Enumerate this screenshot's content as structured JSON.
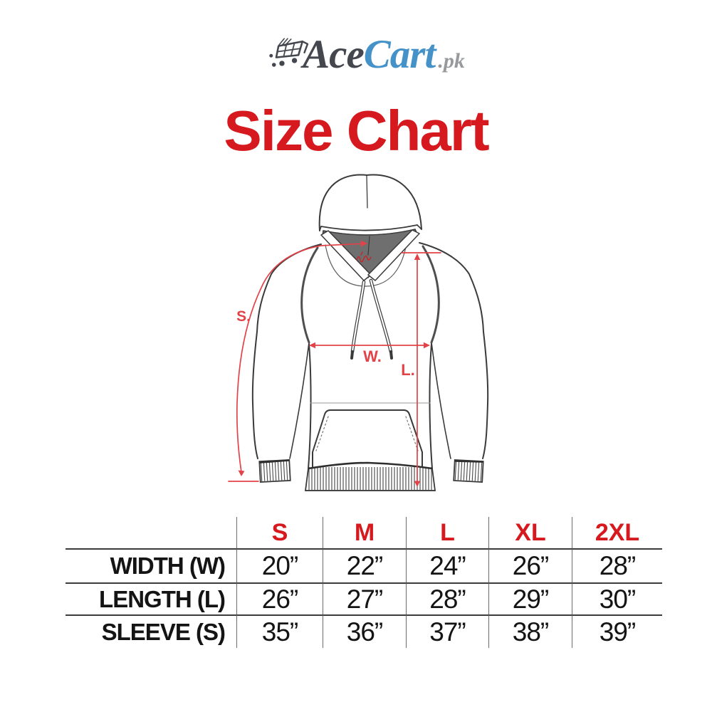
{
  "logo": {
    "icon": "shopping-cart-icon",
    "brand_dark_text": "Ace",
    "brand_blue_text": "Cart",
    "brand_suffix_text": ".pk",
    "brand_dark_color": "#45474f",
    "brand_blue_color": "#4492c8",
    "brand_suffix_color": "#97999c"
  },
  "title": {
    "text": "Size Chart",
    "color": "#d6191f"
  },
  "hoodie_diagram": {
    "drawing": "hoodie-front-line-drawing",
    "outline_color": "#3a3a3a",
    "hood_lining_color": "#6f6f6f",
    "annotation_color": "#e24348",
    "labels": {
      "sleeve": "S.",
      "width": "W.",
      "length": "L."
    },
    "collar_brand_mark": "collar-brand-script-icon"
  },
  "size_table": {
    "header_color": "#d6191f",
    "sizes": [
      "S",
      "M",
      "L",
      "XL",
      "2XL"
    ],
    "rows": [
      {
        "label": "WIDTH (W)",
        "values": [
          "20”",
          "22”",
          "24”",
          "26”",
          "28”"
        ]
      },
      {
        "label": "LENGTH (L)",
        "values": [
          "26”",
          "27”",
          "28”",
          "29”",
          "30”"
        ]
      },
      {
        "label": "SLEEVE (S)",
        "values": [
          "35”",
          "36”",
          "37”",
          "38”",
          "39”"
        ]
      }
    ]
  },
  "chart_data": {
    "type": "table",
    "title": "Size Chart",
    "categories": [
      "S",
      "M",
      "L",
      "XL",
      "2XL"
    ],
    "series": [
      {
        "name": "WIDTH (W)",
        "values": [
          20,
          22,
          24,
          26,
          28
        ]
      },
      {
        "name": "LENGTH (L)",
        "values": [
          26,
          27,
          28,
          29,
          30
        ]
      },
      {
        "name": "SLEEVE (S)",
        "values": [
          35,
          36,
          37,
          38,
          39
        ]
      }
    ],
    "units": "inches"
  }
}
